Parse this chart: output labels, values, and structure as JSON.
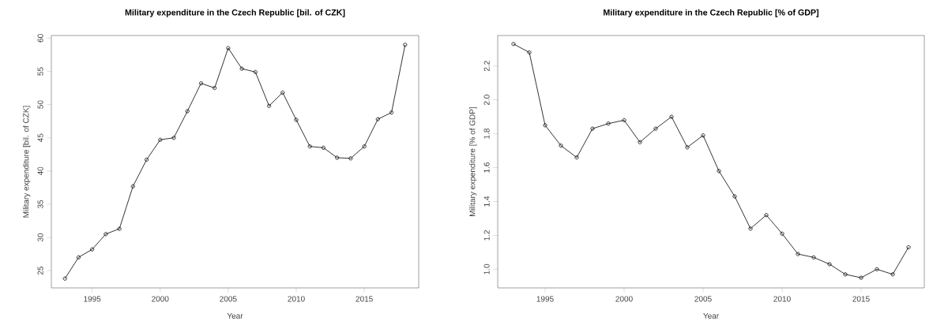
{
  "chart_data": [
    {
      "type": "line",
      "title": "Military expenditure in the Czech Republic [bil. of CZK]",
      "xlabel": "Year",
      "ylabel": "Military expenditure [bil. of CZK]",
      "x": [
        1993,
        1994,
        1995,
        1996,
        1997,
        1998,
        1999,
        2000,
        2001,
        2002,
        2003,
        2004,
        2005,
        2006,
        2007,
        2008,
        2009,
        2010,
        2011,
        2012,
        2013,
        2014,
        2015,
        2016,
        2017,
        2018
      ],
      "values": [
        23.8,
        27.0,
        28.2,
        30.5,
        31.3,
        37.7,
        41.7,
        44.7,
        45.0,
        49.0,
        53.2,
        52.5,
        58.5,
        55.4,
        54.9,
        49.8,
        51.8,
        47.7,
        43.7,
        43.5,
        42.0,
        41.9,
        43.7,
        47.8,
        48.8,
        59.0
      ],
      "color": "#000000",
      "marker": "circle",
      "line_style": "solid",
      "xlim": [
        1992,
        2019
      ],
      "ylim": [
        22.4,
        60.4
      ],
      "xticks": [
        1995,
        2000,
        2005,
        2010,
        2015
      ],
      "yticks": [
        25,
        30,
        35,
        40,
        45,
        50,
        55,
        60
      ],
      "grid": false
    },
    {
      "type": "line",
      "title": "Military expenditure in the Czech Republic [% of GDP]",
      "xlabel": "Year",
      "ylabel": "Military expenditure [% of GDP]",
      "x": [
        1993,
        1994,
        1995,
        1996,
        1997,
        1998,
        1999,
        2000,
        2001,
        2002,
        2003,
        2004,
        2005,
        2006,
        2007,
        2008,
        2009,
        2010,
        2011,
        2012,
        2013,
        2014,
        2015,
        2016,
        2017,
        2018
      ],
      "values": [
        2.33,
        2.28,
        1.85,
        1.73,
        1.66,
        1.83,
        1.86,
        1.88,
        1.75,
        1.83,
        1.9,
        1.72,
        1.79,
        1.58,
        1.43,
        1.24,
        1.32,
        1.21,
        1.09,
        1.07,
        1.03,
        0.97,
        0.95,
        1.0,
        0.97,
        1.13
      ],
      "color": "#000000",
      "marker": "circle",
      "line_style": "solid",
      "xlim": [
        1992,
        2019
      ],
      "ylim": [
        0.89,
        2.38
      ],
      "xticks": [
        1995,
        2000,
        2005,
        2010,
        2015
      ],
      "yticks": [
        {
          "value": 1.0,
          "label": "1.0"
        },
        {
          "value": 1.2,
          "label": "1.2"
        },
        {
          "value": 1.4,
          "label": "1.4"
        },
        {
          "value": 1.6,
          "label": "1.6"
        },
        {
          "value": 1.8,
          "label": "1.8"
        },
        {
          "value": 2.0,
          "label": "2.0"
        },
        {
          "value": 2.2,
          "label": "2.2"
        }
      ],
      "grid": false
    }
  ]
}
